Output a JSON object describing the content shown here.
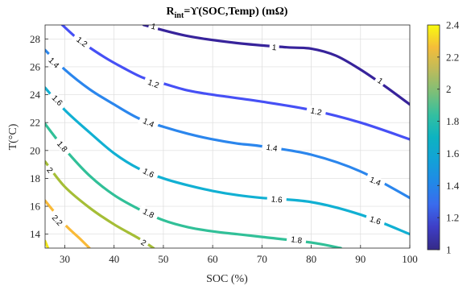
{
  "chart_data": {
    "type": "contour",
    "title": {
      "main": "R",
      "sub": "int",
      "rest": "=ϒ(SOC,Temp) (mΩ)"
    },
    "xlabel": "SOC (%)",
    "ylabel": "T(°C)",
    "xlim": [
      26,
      100
    ],
    "ylim": [
      13,
      29
    ],
    "xticks": [
      30,
      40,
      50,
      60,
      70,
      80,
      90,
      100
    ],
    "yticks": [
      14,
      16,
      18,
      20,
      22,
      24,
      26,
      28
    ],
    "colorbar": {
      "lim": [
        1,
        2.4
      ],
      "ticks": [
        1,
        1.2,
        1.4,
        1.6,
        1.8,
        2,
        2.2,
        2.4
      ],
      "colormap": "parula"
    },
    "contours": [
      {
        "level": "1",
        "color": "#37239b",
        "points": [
          [
            46,
            29
          ],
          [
            55,
            28.2
          ],
          [
            65,
            27.7
          ],
          [
            75,
            27.4
          ],
          [
            80,
            27.3
          ],
          [
            85,
            26.8
          ],
          [
            90,
            25.8
          ],
          [
            95,
            24.6
          ],
          [
            100,
            23.3
          ]
        ],
        "labels": [
          [
            48,
            28.9
          ],
          [
            72.5,
            27.4
          ],
          [
            94,
            25
          ]
        ]
      },
      {
        "level": "1.2",
        "color": "#4650f5",
        "points": [
          [
            29.5,
            29
          ],
          [
            33,
            27.9
          ],
          [
            38,
            26.7
          ],
          [
            42,
            25.9
          ],
          [
            46,
            25.2
          ],
          [
            50,
            24.8
          ],
          [
            55,
            24.3
          ],
          [
            60,
            24.0
          ],
          [
            70,
            23.5
          ],
          [
            80,
            22.9
          ],
          [
            90,
            22.0
          ],
          [
            100,
            20.8
          ]
        ],
        "labels": [
          [
            33.5,
            27.8
          ],
          [
            48,
            24.8
          ],
          [
            81,
            22.8
          ]
        ]
      },
      {
        "level": "1.4",
        "color": "#2b86ed",
        "points": [
          [
            26,
            27.2
          ],
          [
            30,
            25.8
          ],
          [
            35,
            24.4
          ],
          [
            40,
            23.3
          ],
          [
            45,
            22.3
          ],
          [
            50,
            21.7
          ],
          [
            55,
            21.2
          ],
          [
            60,
            20.8
          ],
          [
            65,
            20.5
          ],
          [
            70,
            20.3
          ],
          [
            80,
            19.7
          ],
          [
            90,
            18.5
          ],
          [
            100,
            16.6
          ]
        ],
        "labels": [
          [
            27.8,
            26.3
          ],
          [
            47,
            22.0
          ],
          [
            72,
            20.2
          ],
          [
            93,
            17.8
          ]
        ]
      },
      {
        "level": "1.6",
        "color": "#11b0d3",
        "points": [
          [
            26,
            24.5
          ],
          [
            30,
            22.9
          ],
          [
            35,
            21.3
          ],
          [
            40,
            19.8
          ],
          [
            45,
            18.7
          ],
          [
            50,
            18.0
          ],
          [
            55,
            17.5
          ],
          [
            60,
            17.1
          ],
          [
            65,
            16.8
          ],
          [
            70,
            16.6
          ],
          [
            80,
            16.3
          ],
          [
            90,
            15.4
          ],
          [
            100,
            14.0
          ]
        ],
        "labels": [
          [
            28.5,
            23.6
          ],
          [
            47,
            18.4
          ],
          [
            73,
            16.5
          ],
          [
            93,
            15.0
          ]
        ]
      },
      {
        "level": "1.8",
        "color": "#31c098",
        "points": [
          [
            26,
            21.9
          ],
          [
            30,
            20.1
          ],
          [
            35,
            18.2
          ],
          [
            40,
            16.8
          ],
          [
            45,
            15.8
          ],
          [
            50,
            15.0
          ],
          [
            55,
            14.5
          ],
          [
            60,
            14.2
          ],
          [
            65,
            14.0
          ],
          [
            70,
            13.8
          ],
          [
            80,
            13.4
          ],
          [
            86,
            13.0
          ]
        ],
        "labels": [
          [
            29.5,
            20.3
          ],
          [
            47,
            15.5
          ],
          [
            77,
            13.6
          ]
        ]
      },
      {
        "level": "2",
        "color": "#a5be36",
        "points": [
          [
            26,
            19.2
          ],
          [
            30,
            17.4
          ],
          [
            35,
            15.9
          ],
          [
            40,
            14.7
          ],
          [
            45,
            13.7
          ],
          [
            48,
            13.0
          ]
        ],
        "labels": [
          [
            27,
            18.6
          ],
          [
            46,
            13.4
          ]
        ]
      },
      {
        "level": "2.2",
        "color": "#f9ba38",
        "points": [
          [
            26,
            16.4
          ],
          [
            30,
            14.7
          ],
          [
            33,
            13.7
          ],
          [
            35,
            13.0
          ]
        ],
        "labels": [
          [
            28.5,
            15.0
          ]
        ]
      },
      {
        "level": "",
        "color": "#f2e81a",
        "points": [
          [
            26,
            13.5
          ],
          [
            26.6,
            13.0
          ]
        ],
        "labels": []
      }
    ]
  }
}
